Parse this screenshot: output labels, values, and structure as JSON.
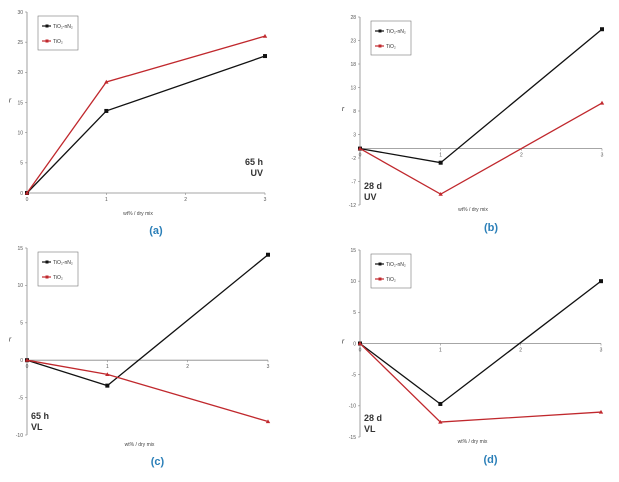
{
  "chart_data": [
    {
      "type": "line",
      "panel_label": "(a)",
      "annotation": [
        "65 h",
        "UV"
      ],
      "xlabel": "wt% / dry mix",
      "ylabel": "r",
      "x": [
        0,
        1,
        3
      ],
      "xticks": [
        0,
        1,
        2,
        3
      ],
      "xlim": [
        0,
        3
      ],
      "ylim": [
        0,
        30
      ],
      "yticks": [
        0,
        5,
        10,
        15,
        20,
        25,
        30
      ],
      "legend_position": "top-left",
      "series": [
        {
          "name": "TiO₂-nN₂",
          "color": "#111111",
          "marker": "square",
          "values": [
            0,
            13.6,
            22.7
          ]
        },
        {
          "name": "TiO₂",
          "color": "#c0282d",
          "marker": "triangle",
          "values": [
            0,
            18.4,
            26.0
          ]
        }
      ]
    },
    {
      "type": "line",
      "panel_label": "(b)",
      "annotation": [
        "28 d",
        "UV"
      ],
      "xlabel": "wt% / dry mix",
      "ylabel": "r",
      "x": [
        0,
        1,
        3
      ],
      "xticks": [
        0,
        1,
        2,
        3
      ],
      "xlim": [
        0,
        3
      ],
      "ylim": [
        -12,
        28
      ],
      "yticks": [
        -12,
        -7,
        -2,
        3,
        8,
        13,
        18,
        23,
        28
      ],
      "legend_position": "top-left",
      "series": [
        {
          "name": "TiO₂-nN₂",
          "color": "#111111",
          "marker": "square",
          "values": [
            0,
            -3.0,
            25.4
          ]
        },
        {
          "name": "TiO₂",
          "color": "#c0282d",
          "marker": "triangle",
          "values": [
            0,
            -9.7,
            9.7
          ]
        }
      ]
    },
    {
      "type": "line",
      "panel_label": "(c)",
      "annotation": [
        "65 h",
        "VL"
      ],
      "xlabel": "wt% / dry mix",
      "ylabel": "r",
      "x": [
        0,
        1,
        3
      ],
      "xticks": [
        0,
        1,
        2,
        3
      ],
      "xlim": [
        0,
        3
      ],
      "ylim": [
        -10,
        15
      ],
      "yticks": [
        -10,
        -5,
        0,
        5,
        10,
        15
      ],
      "legend_position": "top-left",
      "series": [
        {
          "name": "TiO₂-nN₂",
          "color": "#111111",
          "marker": "square",
          "values": [
            0,
            -3.4,
            14.1
          ]
        },
        {
          "name": "TiO₂",
          "color": "#c0282d",
          "marker": "triangle",
          "values": [
            0,
            -1.9,
            -8.2
          ]
        }
      ]
    },
    {
      "type": "line",
      "panel_label": "(d)",
      "annotation": [
        "28 d",
        "VL"
      ],
      "xlabel": "wt% / dry mix",
      "ylabel": "r",
      "x": [
        0,
        1,
        3
      ],
      "xticks": [
        0,
        1,
        2,
        3
      ],
      "xlim": [
        0,
        3
      ],
      "ylim": [
        -15,
        15
      ],
      "yticks": [
        -15,
        -10,
        -5,
        0,
        5,
        10,
        15
      ],
      "legend_position": "top-left",
      "series": [
        {
          "name": "TiO₂-nN₂",
          "color": "#111111",
          "marker": "square",
          "values": [
            0,
            -9.7,
            10.0
          ]
        },
        {
          "name": "TiO₂",
          "color": "#c0282d",
          "marker": "triangle",
          "values": [
            0,
            -12.6,
            -11.0
          ]
        }
      ]
    }
  ]
}
